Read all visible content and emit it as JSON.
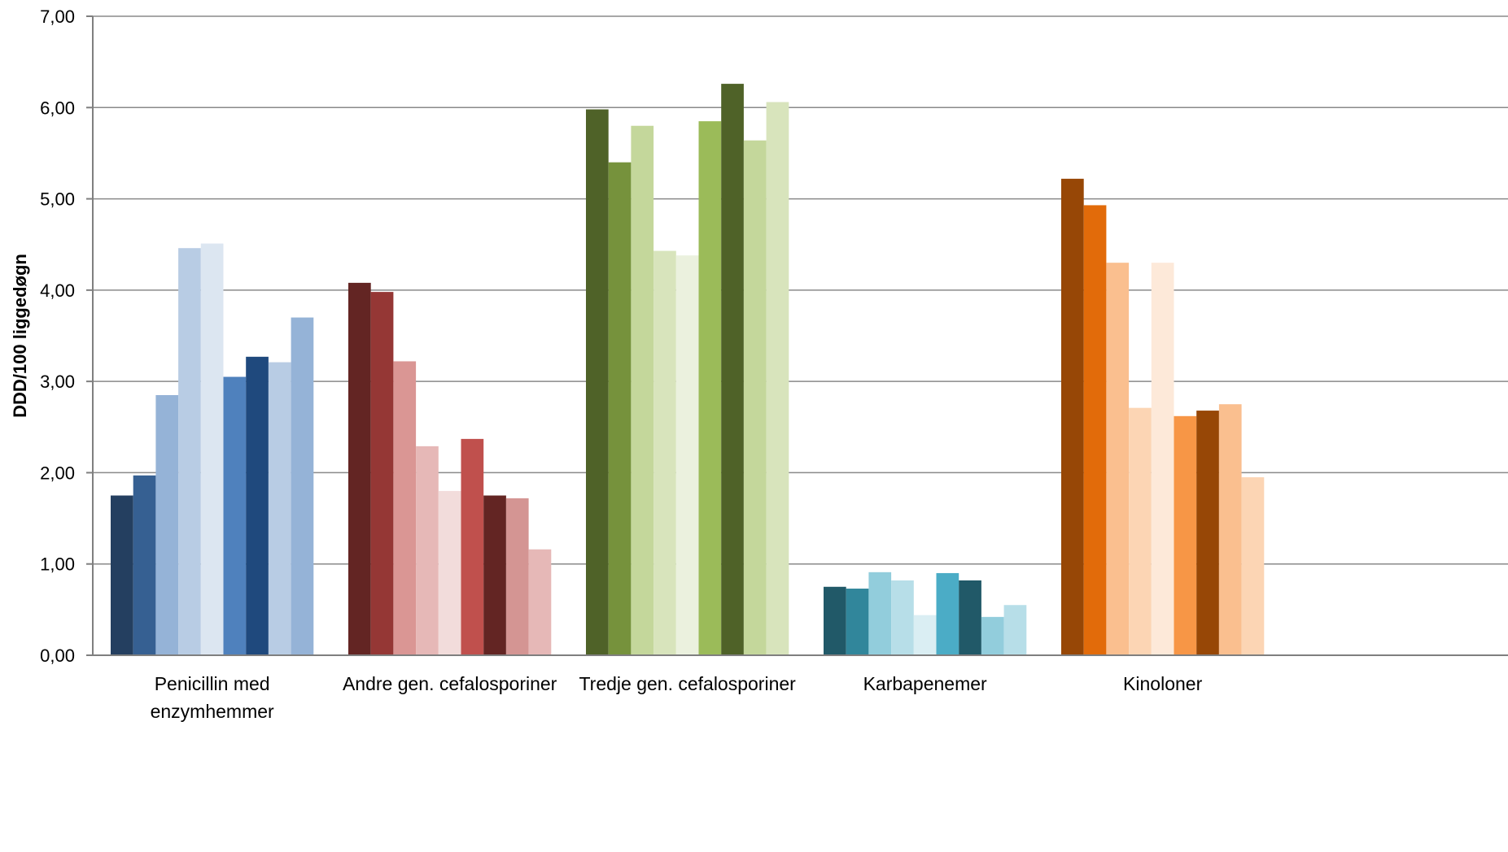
{
  "chart_data": {
    "type": "bar",
    "ylabel": "DDD/100 liggedøgn",
    "xlabel": "",
    "title": "",
    "ylim": [
      0,
      7
    ],
    "ytick_labels": [
      "0,00",
      "1,00",
      "2,00",
      "3,00",
      "4,00",
      "5,00",
      "6,00",
      "7,00"
    ],
    "grid": true,
    "legend": "none",
    "categories": [
      {
        "label_lines": [
          "Penicillin med",
          "enzymhemmer"
        ],
        "values": [
          1.75,
          1.97,
          2.85,
          4.46,
          4.51,
          3.05,
          3.27,
          3.21,
          3.7
        ],
        "colors": [
          "#243F60",
          "#366092",
          "#95B3D7",
          "#B8CCE4",
          "#DCE6F1",
          "#4F81BD",
          "#1F497D",
          "#B8CCE4",
          "#95B3D7"
        ]
      },
      {
        "label_lines": [
          "Andre gen. cefalosporiner"
        ],
        "values": [
          4.08,
          3.98,
          3.22,
          2.29,
          1.8,
          2.37,
          1.75,
          1.72,
          1.16
        ],
        "colors": [
          "#632523",
          "#953735",
          "#DA9694",
          "#E6B8B7",
          "#F2DCDB",
          "#C0504D",
          "#632523",
          "#D49593",
          "#E6B8B7"
        ]
      },
      {
        "label_lines": [
          "Tredje gen. cefalosporiner"
        ],
        "values": [
          5.98,
          5.4,
          5.8,
          4.43,
          4.38,
          5.85,
          6.26,
          5.64,
          6.06
        ],
        "colors": [
          "#4F6228",
          "#76923C",
          "#C4D79B",
          "#D8E4BC",
          "#EBF1DE",
          "#9BBB59",
          "#4F6228",
          "#C4D79B",
          "#D8E4BC"
        ]
      },
      {
        "label_lines": [
          "Karbapenemer"
        ],
        "values": [
          0.75,
          0.73,
          0.91,
          0.82,
          0.44,
          0.9,
          0.82,
          0.42,
          0.55
        ],
        "colors": [
          "#215968",
          "#31869B",
          "#92CDDC",
          "#B7DEE8",
          "#DAEEF3",
          "#4BACC6",
          "#215968",
          "#92CDDC",
          "#B7DEE8"
        ]
      },
      {
        "label_lines": [
          "Kinoloner"
        ],
        "values": [
          5.22,
          4.93,
          4.3,
          2.71,
          4.3,
          2.62,
          2.68,
          2.75,
          1.95
        ],
        "colors": [
          "#974706",
          "#E26B0A",
          "#FABF8F",
          "#FCD5B4",
          "#FDE9D9",
          "#F79646",
          "#974706",
          "#FABF8F",
          "#FCD5B4"
        ]
      }
    ]
  }
}
